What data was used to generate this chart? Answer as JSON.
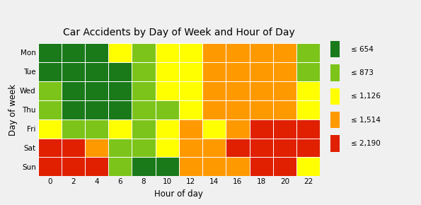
{
  "title": "Car Accidents by Day of Week and Hour of Day",
  "xlabel": "Hour of day",
  "ylabel": "Day of week",
  "days": [
    "Mon",
    "Tue",
    "Wed",
    "Thu",
    "Fri",
    "Sat",
    "Sun"
  ],
  "hours": [
    0,
    2,
    4,
    6,
    8,
    10,
    12,
    14,
    16,
    18,
    20,
    22
  ],
  "legend_labels": [
    "≤ 654",
    "≤ 873",
    "≤ 1,126",
    "≤ 1,514",
    "≤ 2,190"
  ],
  "legend_colors": [
    "#1a7a1a",
    "#7dc41a",
    "#ffff00",
    "#ff9900",
    "#e02000"
  ],
  "category_matrix": [
    [
      0,
      0,
      0,
      2,
      1,
      2,
      2,
      3,
      3,
      3,
      3,
      1
    ],
    [
      0,
      0,
      0,
      0,
      1,
      2,
      2,
      3,
      3,
      3,
      3,
      1
    ],
    [
      1,
      0,
      0,
      0,
      1,
      2,
      2,
      3,
      3,
      3,
      3,
      2
    ],
    [
      1,
      0,
      0,
      0,
      1,
      1,
      2,
      3,
      3,
      3,
      3,
      2
    ],
    [
      2,
      1,
      1,
      2,
      1,
      2,
      3,
      2,
      3,
      4,
      4,
      4
    ],
    [
      4,
      4,
      3,
      1,
      1,
      2,
      3,
      3,
      4,
      4,
      4,
      4
    ],
    [
      4,
      4,
      4,
      1,
      0,
      0,
      3,
      3,
      3,
      4,
      4,
      2
    ]
  ],
  "background_color": "#f0f0f0",
  "grid_color": "#ffffff"
}
